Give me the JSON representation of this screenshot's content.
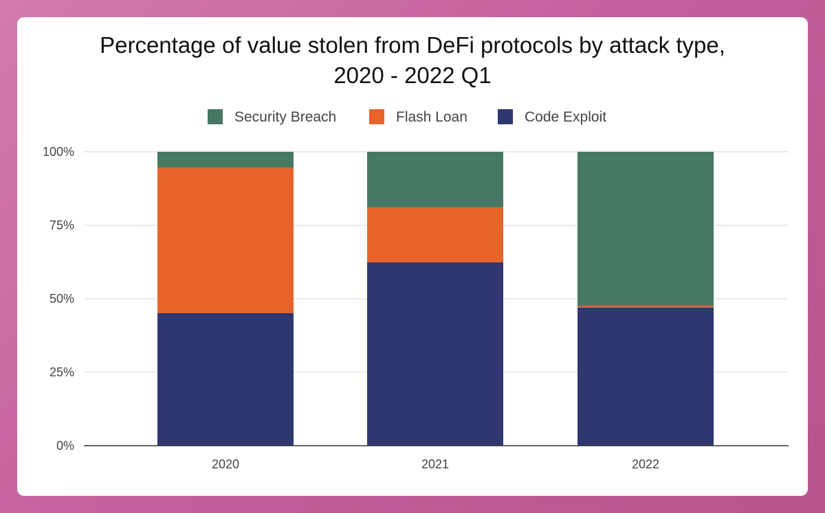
{
  "chart_data": {
    "type": "bar",
    "stacked": true,
    "title_line1": "Percentage of value stolen from DeFi protocols by attack type,",
    "title_line2": "2020 - 2022 Q1",
    "categories": [
      "2020",
      "2021",
      "2022"
    ],
    "series": [
      {
        "name": "Code Exploit",
        "color": "#2e3770",
        "values": [
          45.1,
          62.4,
          47.0
        ]
      },
      {
        "name": "Flash Loan",
        "color": "#e8632a",
        "values": [
          49.5,
          18.7,
          0.5
        ]
      },
      {
        "name": "Security Breach",
        "color": "#477864",
        "values": [
          5.4,
          18.9,
          52.5
        ]
      }
    ],
    "legend_order": [
      "Security Breach",
      "Flash Loan",
      "Code Exploit"
    ],
    "legend_position": "top",
    "yticks": [
      "0%",
      "25%",
      "50%",
      "75%",
      "100%"
    ],
    "ylim": [
      0,
      100
    ],
    "grid": true
  }
}
